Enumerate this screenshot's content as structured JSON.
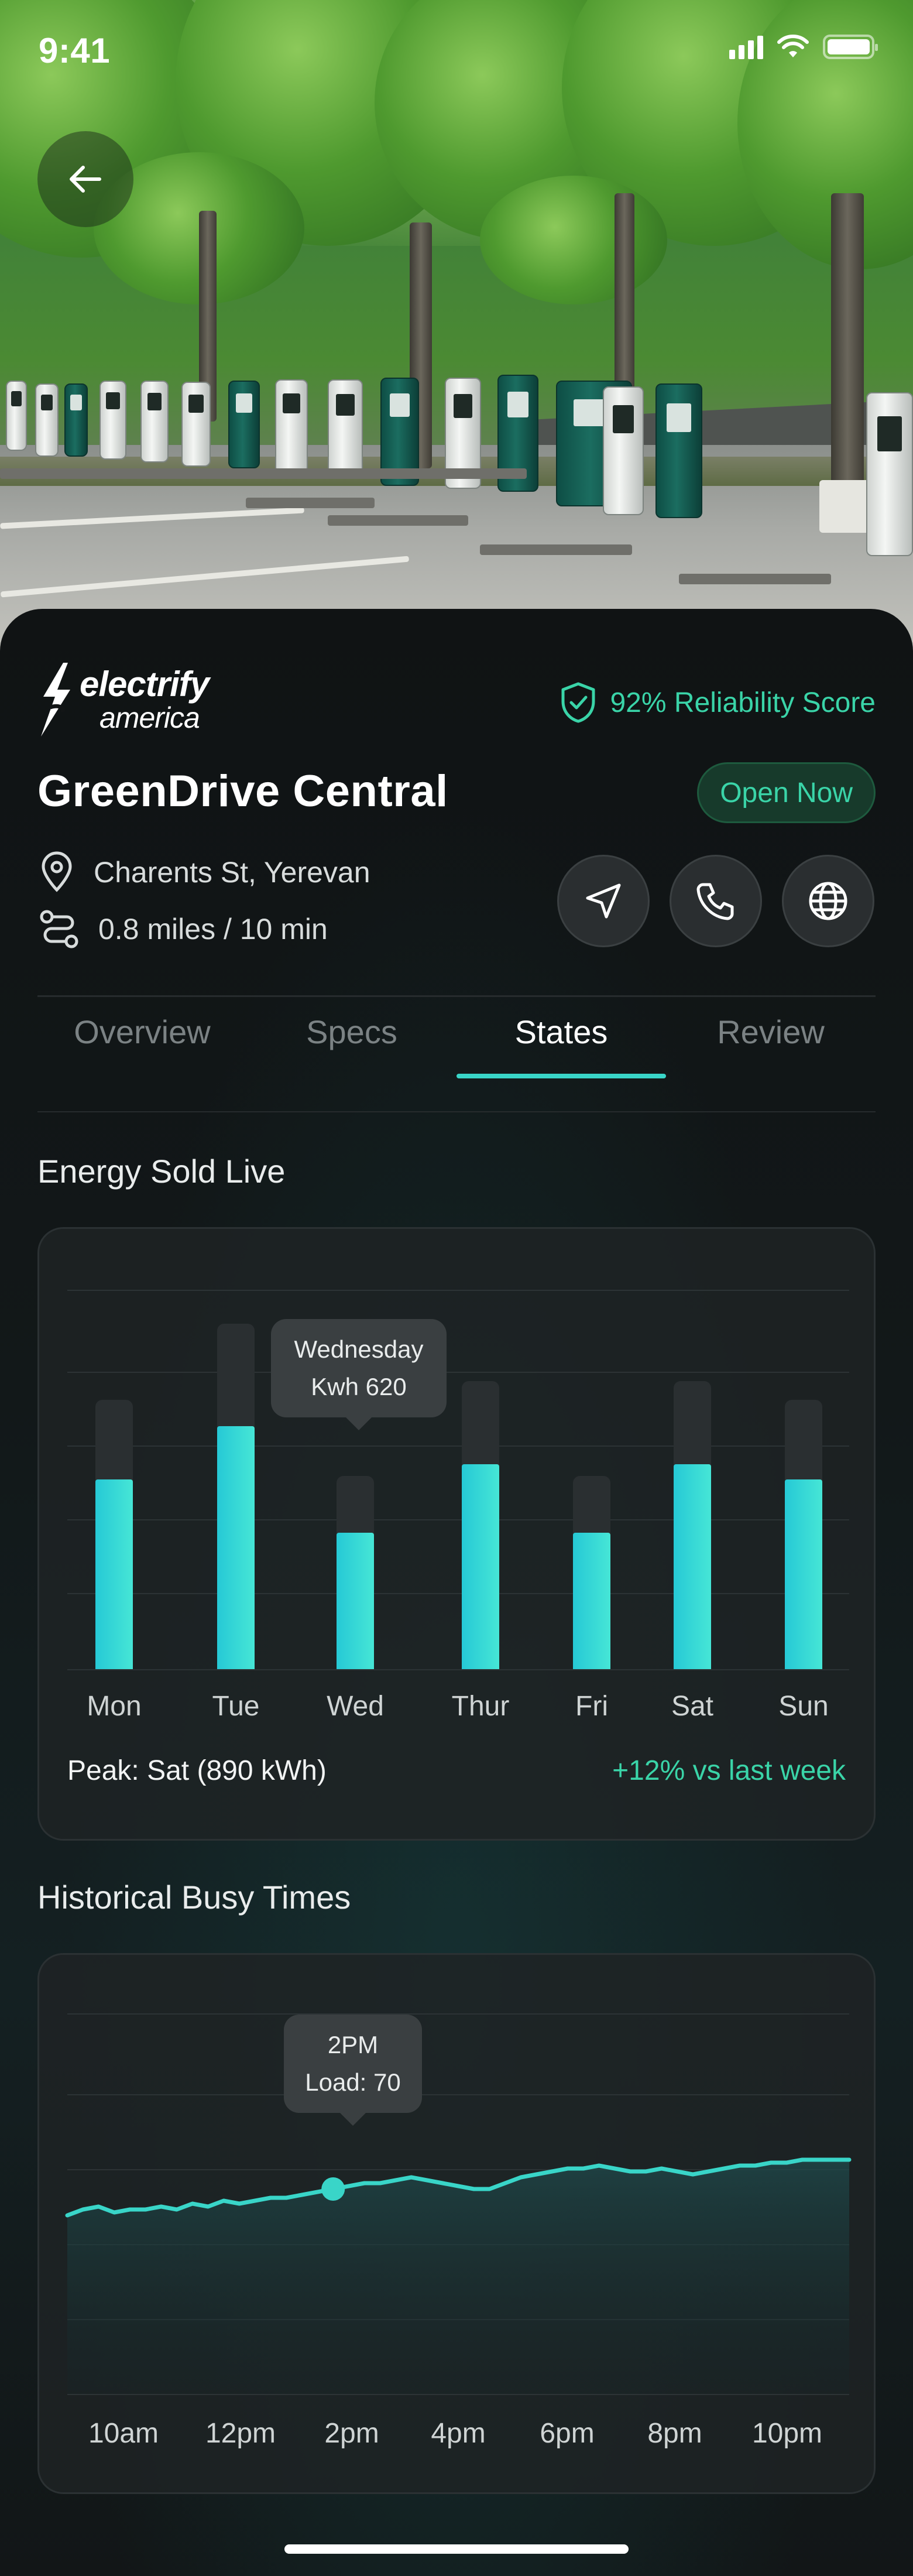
{
  "status_bar": {
    "time": "9:41"
  },
  "header": {
    "back_icon": "arrow-left-icon"
  },
  "station": {
    "brand_line1": "electrify",
    "brand_line2": "america",
    "reliability": "92% Reliability Score",
    "name": "GreenDrive Central",
    "open_status": "Open Now",
    "address": "Charents St, Yerevan",
    "distance": "0.8 miles / 10 min"
  },
  "actions": [
    {
      "name": "navigate",
      "icon": "navigation-arrow-icon"
    },
    {
      "name": "call",
      "icon": "phone-icon"
    },
    {
      "name": "website",
      "icon": "globe-icon"
    }
  ],
  "tabs": [
    {
      "label": "Overview",
      "active": false
    },
    {
      "label": "Specs",
      "active": false
    },
    {
      "label": "States",
      "active": true
    },
    {
      "label": "Review",
      "active": false
    }
  ],
  "energy": {
    "section_title": "Energy Sold Live",
    "tooltip_day": "Wednesday",
    "tooltip_value": "Kwh 620",
    "peak_text": "Peak: Sat (890 kWh)",
    "delta_text": "+12% vs last week"
  },
  "busy": {
    "section_title": "Historical Busy Times",
    "tooltip_time": "2PM",
    "tooltip_load": "Load: 70"
  },
  "chart_data": [
    {
      "type": "bar",
      "categories": [
        "Mon",
        "Tue",
        "Wed",
        "Thur",
        "Fri",
        "Sat",
        "Sun"
      ],
      "series": [
        {
          "values": [
            0.5,
            0.64,
            0.36,
            0.54,
            0.36,
            0.54,
            0.5
          ]
        },
        {
          "values": [
            0.71,
            0.91,
            0.51,
            0.76,
            0.51,
            0.76,
            0.71
          ]
        }
      ],
      "highlight": {
        "category": "Wed",
        "label": "Kwh 620"
      },
      "accent": "#39d5c8"
    },
    {
      "type": "area",
      "x_labels": [
        "10am",
        "12pm",
        "2pm",
        "4pm",
        "6pm",
        "8pm",
        "10pm"
      ],
      "x": [
        0,
        2,
        4,
        6,
        8,
        10,
        12,
        14,
        16,
        18,
        20,
        22,
        24,
        26,
        28,
        30,
        32,
        34,
        36,
        38,
        40,
        42,
        44,
        46,
        48,
        50,
        52,
        54,
        56,
        58,
        60,
        62,
        64,
        66,
        68,
        70,
        72,
        74,
        76,
        78,
        80,
        82,
        84,
        86,
        88,
        90,
        92,
        94,
        96,
        98,
        100
      ],
      "y": [
        61,
        63,
        64,
        62,
        63,
        63,
        64,
        63,
        65,
        64,
        66,
        65,
        66,
        67,
        67,
        68,
        69,
        70,
        71,
        72,
        72,
        73,
        74,
        73,
        72,
        71,
        70,
        70,
        72,
        74,
        75,
        76,
        77,
        77,
        78,
        77,
        76,
        76,
        77,
        76,
        75,
        76,
        77,
        78,
        78,
        79,
        79,
        80,
        80,
        80,
        80
      ],
      "highlight": {
        "x": "2PM",
        "value": 70
      },
      "accent": "#39d5c8"
    }
  ]
}
